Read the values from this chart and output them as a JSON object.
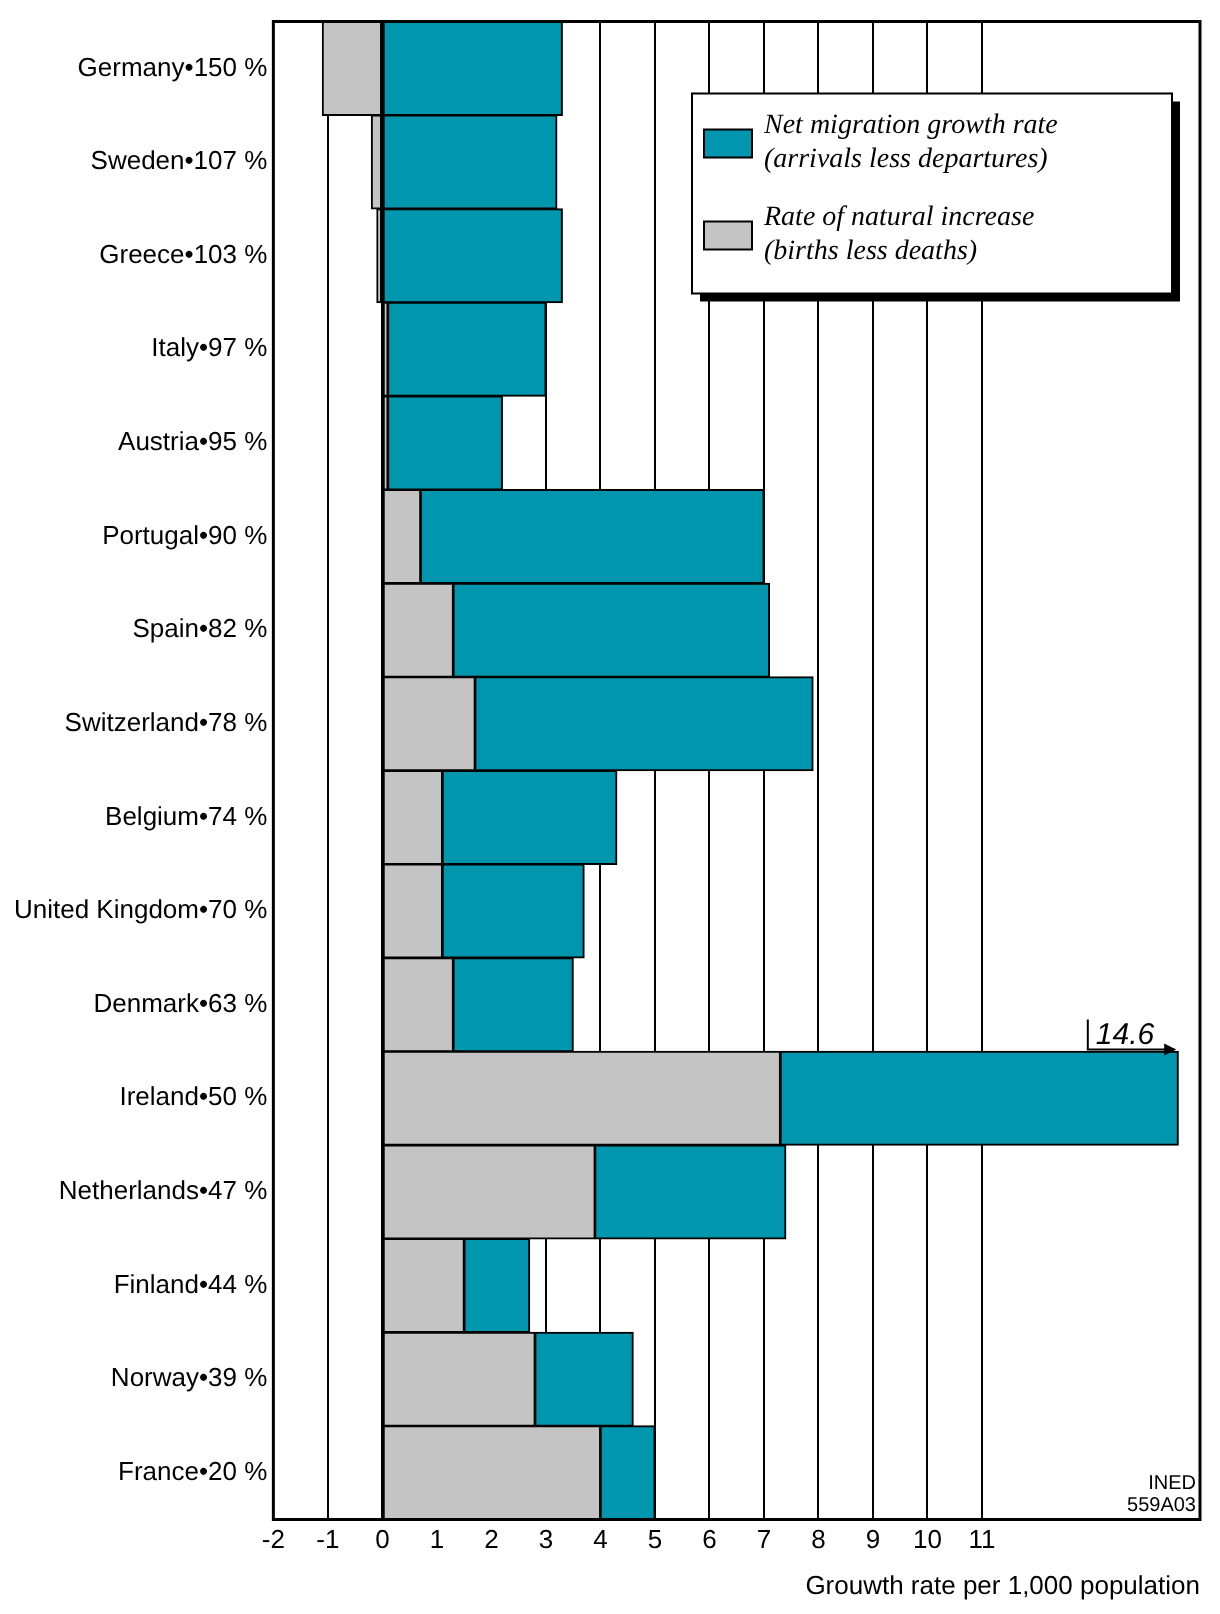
{
  "chart_data": {
    "type": "bar",
    "orientation": "horizontal",
    "stacked": true,
    "categories": [
      "Germany•150 %",
      "Sweden•107 %",
      "Greece•103 %",
      "Italy•97 %",
      "Austria•95 %",
      "Portugal•90 %",
      "Spain•82 %",
      "Switzerland•78 %",
      "Belgium•74 %",
      "United Kingdom•70 %",
      "Denmark•63 %",
      "Ireland•50 %",
      "Netherlands•47 %",
      "Finland•44 %",
      "Norway•39 %",
      "France•20 %"
    ],
    "series": [
      {
        "name": "Rate of natural increase (births less deaths)",
        "color": "#c4c4c4",
        "values": [
          -1.1,
          -0.2,
          -0.1,
          0.1,
          0.1,
          0.7,
          1.3,
          1.7,
          1.1,
          1.1,
          1.3,
          7.3,
          3.9,
          1.5,
          2.8,
          4.0
        ]
      },
      {
        "name": "Net migration growth rate (arrivals less departures)",
        "color": "#0096ae",
        "values": [
          3.3,
          3.2,
          3.3,
          2.9,
          2.1,
          6.3,
          5.8,
          6.2,
          3.2,
          2.6,
          2.2,
          7.3,
          3.5,
          1.2,
          1.8,
          1.0
        ]
      }
    ],
    "xlim": [
      -2,
      15
    ],
    "xticks": [
      -2,
      -1,
      0,
      1,
      2,
      3,
      4,
      5,
      6,
      7,
      8,
      9,
      10,
      11
    ],
    "xlabel": "Grouwth rate per 1,000 population",
    "grid": "x",
    "legend": "top right",
    "annotations": [
      {
        "text": "14.6",
        "x": 14.6,
        "y": "Ireland•50 %"
      },
      "INED",
      "559A03"
    ]
  }
}
